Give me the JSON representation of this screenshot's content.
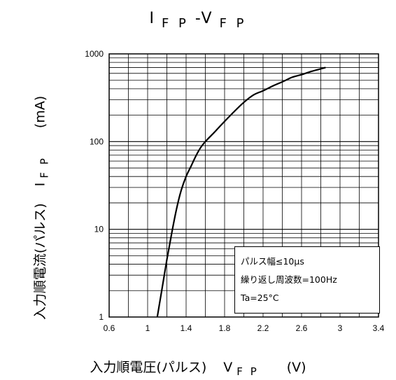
{
  "chart_data": {
    "type": "line",
    "title_main": "I",
    "title_sub": "F P",
    "title_sep": "-V",
    "title_sub2": "F P",
    "xlabel_main": "入力順電圧(パルス)",
    "xlabel_var": "V",
    "xlabel_sub": "F P",
    "xlabel_unit": "(V)",
    "ylabel_main": "入力順電流(パルス)",
    "ylabel_var": "I",
    "ylabel_sub": "F P",
    "ylabel_unit": "(mA)",
    "xlim": [
      0.6,
      3.4
    ],
    "ylim": [
      1,
      1000
    ],
    "yscale": "log",
    "xticks": [
      "0.6",
      "1",
      "1.4",
      "1.8",
      "2.2",
      "2.6",
      "3",
      "3.4"
    ],
    "yticks": [
      "1",
      "10",
      "100",
      "1000"
    ],
    "grid": true,
    "legend_position": "bottom-right",
    "annotations": [
      "パルス幅≤10μs",
      "繰り返し周波数=100Hz",
      "Ta=25°C"
    ],
    "series": [
      {
        "x": [
          1.1,
          1.15,
          1.2,
          1.25,
          1.3,
          1.35,
          1.4,
          1.45,
          1.5,
          1.55,
          1.6,
          1.7,
          1.8,
          1.9,
          2.0,
          2.1,
          2.2,
          2.3,
          2.4,
          2.5,
          2.6,
          2.7,
          2.85
        ],
        "y": [
          1,
          2.1,
          4.5,
          9,
          17,
          28,
          40,
          52,
          68,
          85,
          100,
          130,
          170,
          220,
          280,
          340,
          380,
          430,
          480,
          540,
          580,
          630,
          700
        ]
      }
    ],
    "line_color": "#000000"
  }
}
